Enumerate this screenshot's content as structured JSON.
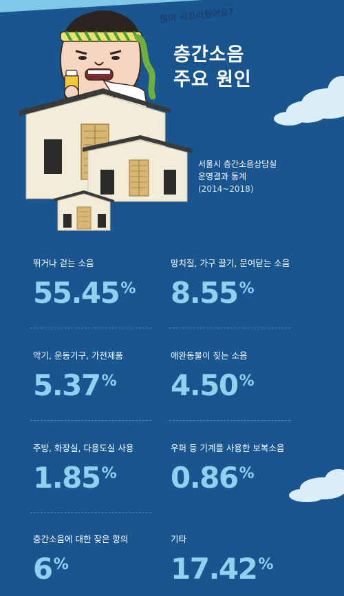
{
  "header": {
    "bubble": "많이 시끄러웠어요?",
    "title_line1": "층간소음",
    "title_line2": "주요 원인",
    "source_line1": "서울시 층간소음상담실",
    "source_line2": "운영결과 통계",
    "source_years": "(2014~2018)"
  },
  "stats": [
    {
      "label": "뛰거나 걷는 소음",
      "value": "55.45",
      "unit": "%"
    },
    {
      "label": "망치질, 가구 끌기, 문여닫는 소음",
      "value": "8.55",
      "unit": "%"
    },
    {
      "label": "악기, 운동기구, 가전제품",
      "value": "5.37",
      "unit": "%"
    },
    {
      "label": "애완동물이 짖는 소음",
      "value": "4.50",
      "unit": "%"
    },
    {
      "label": "주방, 화장실, 다용도실 사용",
      "value": "1.85",
      "unit": "%"
    },
    {
      "label": "우퍼 등 기계를 사용한 보복소음",
      "value": "0.86",
      "unit": "%"
    },
    {
      "label": "층간소음에 대한 잦은 항의",
      "value": "6",
      "unit": "%"
    },
    {
      "label": "기타",
      "value": "17.42",
      "unit": "%"
    }
  ],
  "colors": {
    "background": "#19558f",
    "sky": "#7fc8e8",
    "value": "#8fd1ef",
    "house_wall": "#f3ecd8",
    "house_roof": "#3a3a3a",
    "door": "#d8b673"
  }
}
